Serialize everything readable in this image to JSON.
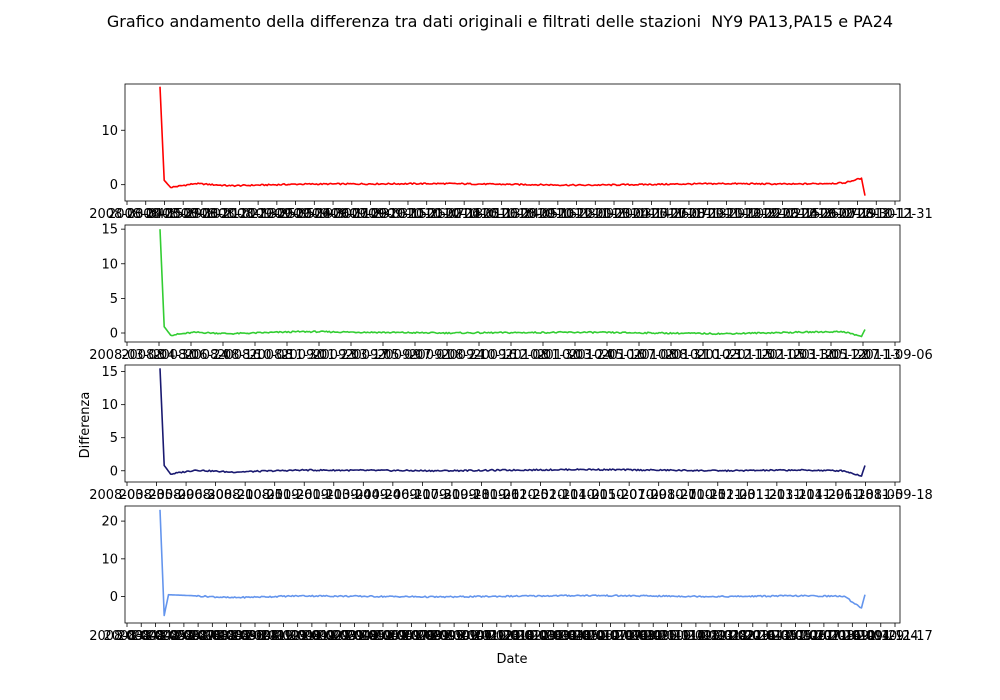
{
  "title": "Grafico andamento della differenza tra dati originali e filtrati delle stazioni  NY9 PA13,PA15 e PA24",
  "ylabel": "Differenza",
  "xlabel": "Date",
  "chart_data": [
    {
      "type": "line",
      "color": "#ff0000",
      "ylim": [
        -3,
        18.5
      ],
      "yticks": [
        0,
        10
      ],
      "xtick_labels": [
        "2008-03-04",
        "2008-04-15",
        "2008-05-29",
        "2008-07-10",
        "2008-08-21",
        "2008-10-02",
        "2008-11-13",
        "2008-12-25",
        "2009-02-05",
        "2009-03-19",
        "2009-04-30",
        "2009-06-11",
        "2009-07-23",
        "2009-09-03",
        "2009-10-15",
        "2009-11-26",
        "2010-01-07",
        "2010-02-18",
        "2010-04-01",
        "2010-05-13",
        "2010-06-24",
        "2010-08-05",
        "2010-09-16",
        "2010-10-28",
        "2010-12-09",
        "2011-01-20",
        "2011-03-03",
        "2011-04-14",
        "2011-05-26",
        "2011-07-07",
        "2011-08-18",
        "2011-09-29",
        "2011-11-10",
        "2011-12-22",
        "2012-02-02",
        "2012-03-15",
        "2012-04-26",
        "2012-06-07",
        "2012-07-19",
        "2012-08-30",
        "2012-10-11",
        "2012-12-31"
      ],
      "points": [
        [
          0,
          18
        ],
        [
          0.6,
          0.8
        ],
        [
          1.5,
          -0.5
        ],
        [
          5,
          0.2
        ],
        [
          10,
          -0.2
        ],
        [
          20,
          0.1
        ],
        [
          40,
          0.2
        ],
        [
          60,
          -0.1
        ],
        [
          80,
          0.2
        ],
        [
          90,
          0.1
        ],
        [
          97,
          0.3
        ],
        [
          99.5,
          1.2
        ],
        [
          100,
          -2
        ]
      ]
    },
    {
      "type": "line",
      "color": "#32cd32",
      "ylim": [
        -1.3,
        15.6
      ],
      "yticks": [
        0,
        5,
        10,
        15
      ],
      "xtick_labels": [
        "2008-03-08",
        "2008-04-30",
        "2008-06-24",
        "2008-08-16",
        "2008-10-08",
        "2008-11-30",
        "2009-01-23",
        "2009-03-17",
        "2009-05-09",
        "2009-07-01",
        "2009-08-24",
        "2009-10-16",
        "2009-12-08",
        "2010-01-30",
        "2010-03-24",
        "2010-05-16",
        "2010-07-08",
        "2010-08-31",
        "2010-10-23",
        "2010-12-15",
        "2011-02-05",
        "2011-03-30",
        "2011-05-22",
        "2011-07-13",
        "2011-09-06"
      ],
      "points": [
        [
          0,
          15
        ],
        [
          0.6,
          0.9
        ],
        [
          1.5,
          -0.3
        ],
        [
          5,
          0.1
        ],
        [
          10,
          -0.1
        ],
        [
          20,
          0.2
        ],
        [
          40,
          0
        ],
        [
          60,
          0.1
        ],
        [
          80,
          -0.1
        ],
        [
          90,
          0.1
        ],
        [
          97,
          0.2
        ],
        [
          99.5,
          -0.5
        ],
        [
          100,
          0.5
        ]
      ]
    },
    {
      "type": "line",
      "color": "#191970",
      "ylim": [
        -1.7,
        16
      ],
      "yticks": [
        0,
        5,
        10,
        15
      ],
      "xtick_labels": [
        "2008-03-23",
        "2008-05-09",
        "2008-06-30",
        "2008-08-20",
        "2008-10-05",
        "2008-11-26",
        "2009-01-11",
        "2009-03-04",
        "2009-04-24",
        "2009-06-11",
        "2009-07-31",
        "2009-09-18",
        "2009-11-06",
        "2009-12-25",
        "2010-02-11",
        "2010-04-01",
        "2010-05-20",
        "2010-07-09",
        "2010-08-27",
        "2010-10-15",
        "2010-12-03",
        "2011-01-21",
        "2011-03-11",
        "2011-04-29",
        "2011-06-18",
        "2011-08-05",
        "2011-09-18"
      ],
      "points": [
        [
          0,
          15.5
        ],
        [
          0.6,
          0.8
        ],
        [
          1.5,
          -0.5
        ],
        [
          5,
          0.1
        ],
        [
          10,
          -0.2
        ],
        [
          20,
          0.1
        ],
        [
          40,
          0
        ],
        [
          60,
          0.2
        ],
        [
          80,
          0
        ],
        [
          90,
          0.1
        ],
        [
          97,
          0
        ],
        [
          99.5,
          -0.8
        ],
        [
          100,
          0.8
        ]
      ]
    },
    {
      "type": "line",
      "color": "#6495ed",
      "ylim": [
        -7,
        24
      ],
      "yticks": [
        0,
        10,
        20
      ],
      "xtick_labels": [
        "2008-03-08",
        "2008-04-02",
        "2008-04-27",
        "2008-05-22",
        "2008-06-16",
        "2008-07-11",
        "2008-08-05",
        "2008-08-30",
        "2008-09-24",
        "2008-10-19",
        "2008-11-13",
        "2008-12-08",
        "2009-01-02",
        "2009-01-27",
        "2009-02-21",
        "2009-03-18",
        "2009-04-12",
        "2009-05-07",
        "2009-06-01",
        "2009-06-26",
        "2009-07-21",
        "2009-08-15",
        "2009-09-09",
        "2009-10-04",
        "2009-10-29",
        "2009-11-23",
        "2009-12-18",
        "2010-01-12",
        "2010-02-06",
        "2010-03-03",
        "2010-03-28",
        "2010-04-22",
        "2010-05-17",
        "2010-06-11",
        "2010-07-06",
        "2010-07-31",
        "2010-08-25",
        "2010-09-19",
        "2010-10-14",
        "2010-11-08",
        "2010-12-03",
        "2010-12-28",
        "2011-01-22",
        "2011-02-16",
        "2011-03-13",
        "2011-04-07",
        "2011-05-02",
        "2011-05-27",
        "2011-06-21",
        "2011-07-16",
        "2011-08-10",
        "2011-09-04",
        "2011-09-29",
        "2011-10-24",
        "2011-11-17"
      ],
      "points": [
        [
          0,
          23
        ],
        [
          0.6,
          -5
        ],
        [
          1.2,
          0.5
        ],
        [
          5,
          0.2
        ],
        [
          10,
          -0.3
        ],
        [
          20,
          0.2
        ],
        [
          40,
          -0.1
        ],
        [
          60,
          0.3
        ],
        [
          80,
          0
        ],
        [
          90,
          0.2
        ],
        [
          97,
          0.1
        ],
        [
          99.5,
          -3
        ],
        [
          100,
          0.5
        ]
      ]
    }
  ]
}
